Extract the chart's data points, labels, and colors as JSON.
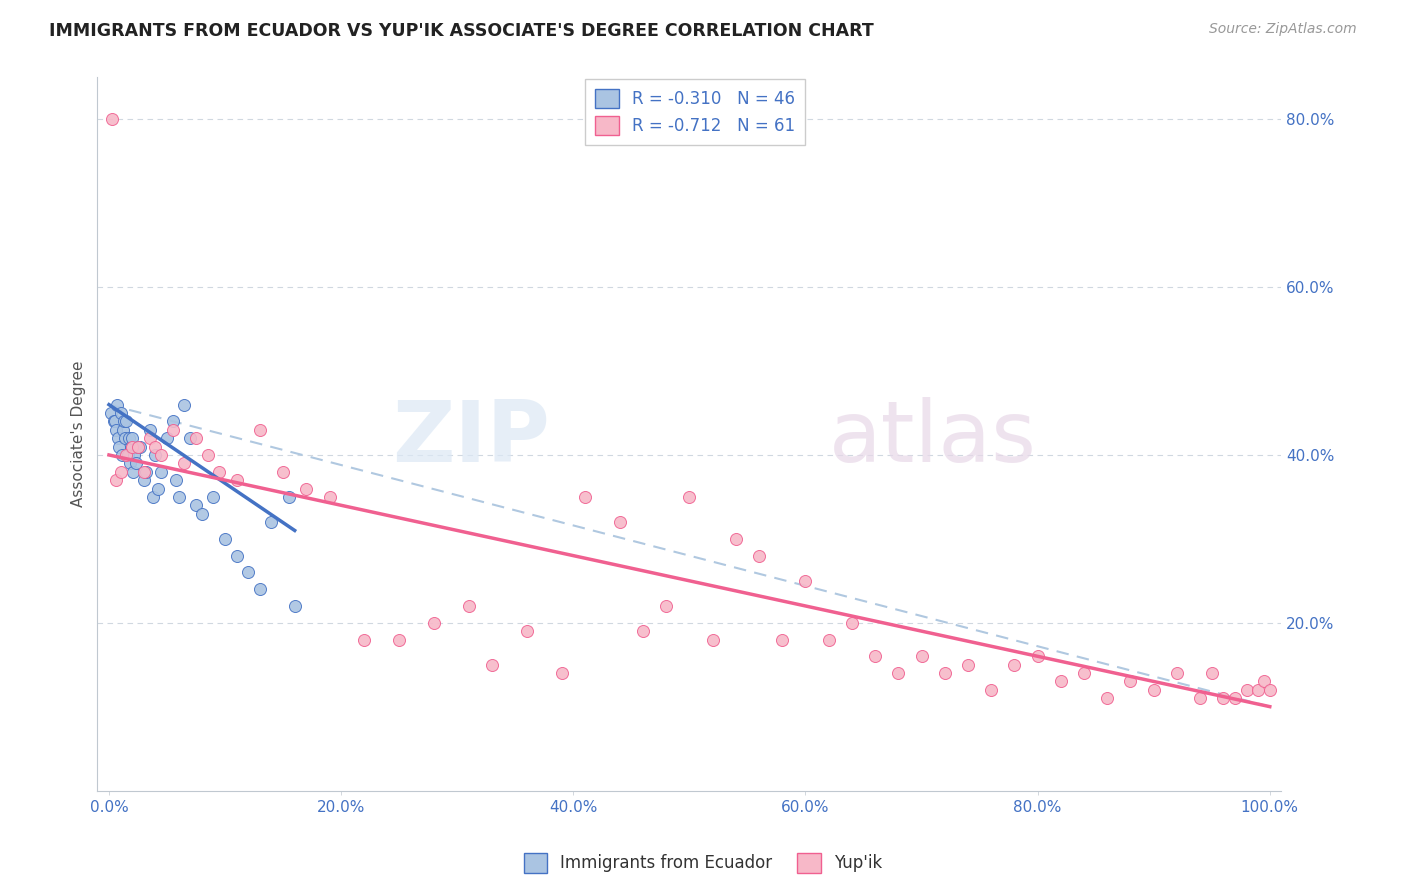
{
  "title": "IMMIGRANTS FROM ECUADOR VS YUP'IK ASSOCIATE'S DEGREE CORRELATION CHART",
  "source": "Source: ZipAtlas.com",
  "ylabel": "Associate's Degree",
  "legend_label1": "Immigrants from Ecuador",
  "legend_label2": "Yup'ik",
  "r1": "-0.310",
  "n1": "46",
  "r2": "-0.712",
  "n2": "61",
  "color_blue": "#aac4e2",
  "color_pink": "#f7b8c8",
  "line_blue": "#4472c4",
  "line_pink": "#f06090",
  "line_dashed_color": "#b0c8e0",
  "xlim": [
    0,
    100
  ],
  "ylim": [
    0,
    85
  ],
  "xticks": [
    0,
    20,
    40,
    60,
    80,
    100
  ],
  "yticks_right": [
    20,
    40,
    60,
    80
  ],
  "ecuador_x": [
    0.2,
    0.4,
    0.5,
    0.6,
    0.7,
    0.8,
    0.9,
    1.0,
    1.1,
    1.2,
    1.3,
    1.4,
    1.5,
    1.6,
    1.7,
    1.8,
    1.9,
    2.0,
    2.1,
    2.2,
    2.3,
    2.5,
    2.7,
    3.0,
    3.2,
    3.5,
    3.8,
    4.0,
    4.2,
    4.5,
    5.0,
    5.5,
    5.8,
    6.0,
    6.5,
    7.0,
    7.5,
    8.0,
    9.0,
    10.0,
    11.0,
    12.0,
    13.0,
    14.0,
    15.5,
    16.0
  ],
  "ecuador_y": [
    45,
    44,
    44,
    43,
    46,
    42,
    41,
    45,
    40,
    43,
    44,
    42,
    44,
    40,
    42,
    39,
    41,
    42,
    38,
    40,
    39,
    41,
    41,
    37,
    38,
    43,
    35,
    40,
    36,
    38,
    42,
    44,
    37,
    35,
    46,
    42,
    34,
    33,
    35,
    30,
    28,
    26,
    24,
    32,
    35,
    22
  ],
  "yupik_x": [
    0.3,
    0.6,
    1.0,
    1.5,
    2.0,
    2.5,
    3.0,
    3.5,
    4.0,
    4.5,
    5.5,
    6.5,
    7.5,
    8.5,
    9.5,
    11.0,
    13.0,
    15.0,
    17.0,
    19.0,
    22.0,
    25.0,
    28.0,
    31.0,
    33.0,
    36.0,
    39.0,
    41.0,
    44.0,
    46.0,
    48.0,
    50.0,
    52.0,
    54.0,
    56.0,
    58.0,
    60.0,
    62.0,
    64.0,
    66.0,
    68.0,
    70.0,
    72.0,
    74.0,
    76.0,
    78.0,
    80.0,
    82.0,
    84.0,
    86.0,
    88.0,
    90.0,
    92.0,
    94.0,
    95.0,
    96.0,
    97.0,
    98.0,
    99.0,
    99.5,
    100.0
  ],
  "yupik_y": [
    80,
    37,
    38,
    40,
    41,
    41,
    38,
    42,
    41,
    40,
    43,
    39,
    42,
    40,
    38,
    37,
    43,
    38,
    36,
    35,
    18,
    18,
    20,
    22,
    15,
    19,
    14,
    35,
    32,
    19,
    22,
    35,
    18,
    30,
    28,
    18,
    25,
    18,
    20,
    16,
    14,
    16,
    14,
    15,
    12,
    15,
    16,
    13,
    14,
    11,
    13,
    12,
    14,
    11,
    14,
    11,
    11,
    12,
    12,
    13,
    12
  ],
  "ec_line_x0": 0,
  "ec_line_x1": 16,
  "ec_line_y0": 46,
  "ec_line_y1": 31,
  "yp_line_x0": 0,
  "yp_line_x1": 100,
  "yp_line_y0": 40,
  "yp_line_y1": 10,
  "dash_line_x0": 0,
  "dash_line_x1": 100,
  "dash_line_y0": 46,
  "dash_line_y1": 10
}
